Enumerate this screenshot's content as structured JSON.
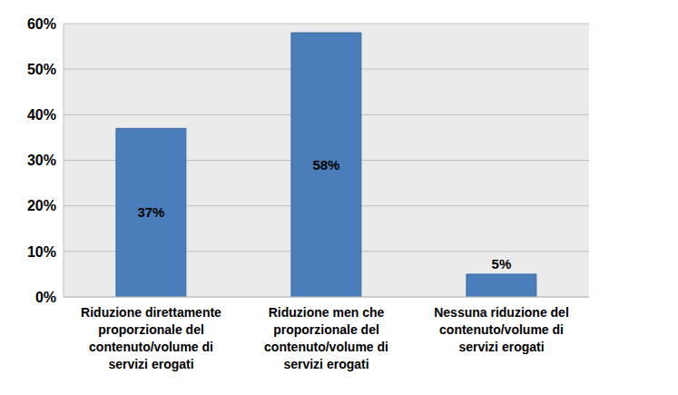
{
  "chart_data": {
    "type": "bar",
    "categories": [
      "Riduzione direttamente proporzionale del contenuto/volume di servizi erogati",
      "Riduzione men che proporzionale del contenuto/volume di servizi erogati",
      "Nessuna riduzione del contenuto/volume di servizi erogati"
    ],
    "values": [
      37,
      58,
      5
    ],
    "value_labels": [
      "37%",
      "58%",
      "5%"
    ],
    "data_labels": true,
    "color": "#4a7ebb",
    "ylim": [
      0,
      60
    ],
    "yticks": [
      {
        "value": 0,
        "label": "0%"
      },
      {
        "value": 10,
        "label": "10%"
      },
      {
        "value": 20,
        "label": "20%"
      },
      {
        "value": 30,
        "label": "30%"
      },
      {
        "value": 40,
        "label": "40%"
      },
      {
        "value": 50,
        "label": "50%"
      },
      {
        "value": 60,
        "label": "60%"
      }
    ],
    "grid": true
  }
}
